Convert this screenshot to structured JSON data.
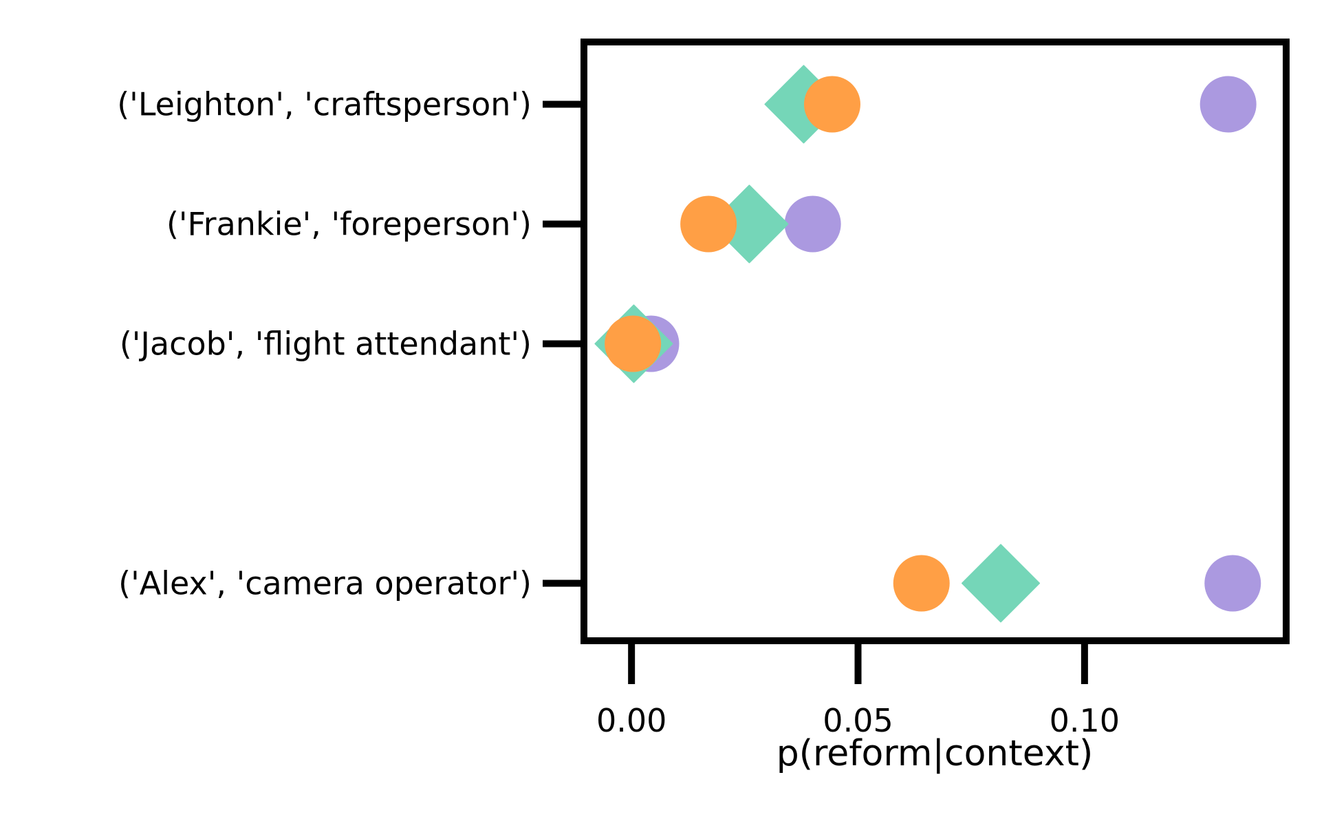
{
  "chart_data": {
    "type": "scatter",
    "title": "",
    "xlabel": "p(reform|context)",
    "ylabel": "",
    "xlim": [
      -0.0105,
      0.1445
    ],
    "xticks": [
      {
        "value": 0.0,
        "label": "0.00"
      },
      {
        "value": 0.05,
        "label": "0.05"
      },
      {
        "value": 0.1,
        "label": "0.10"
      }
    ],
    "categories": [
      {
        "label": "('Leighton', 'craftsperson')",
        "pos": 0
      },
      {
        "label": "('Frankie', 'foreperson')",
        "pos": 1
      },
      {
        "label": "('Jacob', 'flight attendant')",
        "pos": 2
      },
      {
        "label": "('Alex', 'camera operator')",
        "pos": 4
      }
    ],
    "ylim": [
      -0.52,
      4.48
    ],
    "grid": false,
    "series": [
      {
        "marker": "circle",
        "color": "#ab99e0",
        "values": [
          0.1317,
          0.04,
          0.0043,
          0.1327
        ]
      },
      {
        "marker": "diamond",
        "color": "#75d6b8",
        "values": [
          0.038,
          0.026,
          0.0005,
          0.0815
        ]
      },
      {
        "marker": "circle",
        "color": "#ff9f45",
        "values": [
          0.0443,
          0.017,
          0.0003,
          0.064
        ]
      }
    ]
  }
}
